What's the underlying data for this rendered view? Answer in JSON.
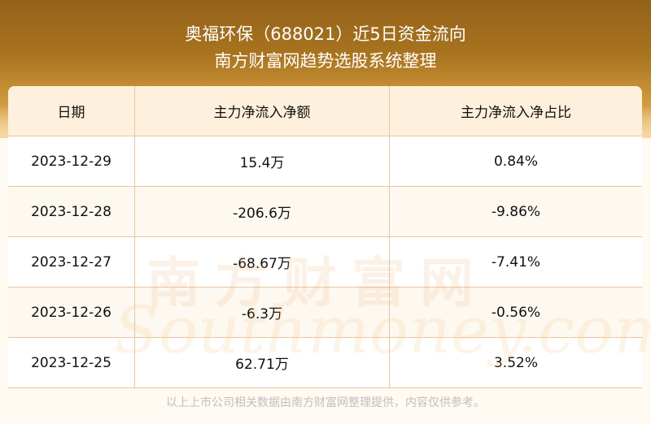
{
  "header": {
    "title": "奥福环保（688021）近5日资金流向",
    "subtitle": "南方财富网趋势选股系统整理"
  },
  "table": {
    "columns": [
      "日期",
      "主力净流入净额",
      "主力净流入净占比"
    ],
    "rows": [
      {
        "date": "2023-12-29",
        "amount": "15.4万",
        "ratio": "0.84%"
      },
      {
        "date": "2023-12-28",
        "amount": "-206.6万",
        "ratio": "-9.86%"
      },
      {
        "date": "2023-12-27",
        "amount": "-68.67万",
        "ratio": "-7.41%"
      },
      {
        "date": "2023-12-26",
        "amount": "-6.3万",
        "ratio": "-0.56%"
      },
      {
        "date": "2023-12-25",
        "amount": "62.71万",
        "ratio": "3.52%"
      }
    ]
  },
  "watermark": {
    "cn": "南方财富网",
    "en": "Southmoney.com"
  },
  "footer": "以上上市公司相关数据由南方财富网整理提供，内容仅供参考。"
}
